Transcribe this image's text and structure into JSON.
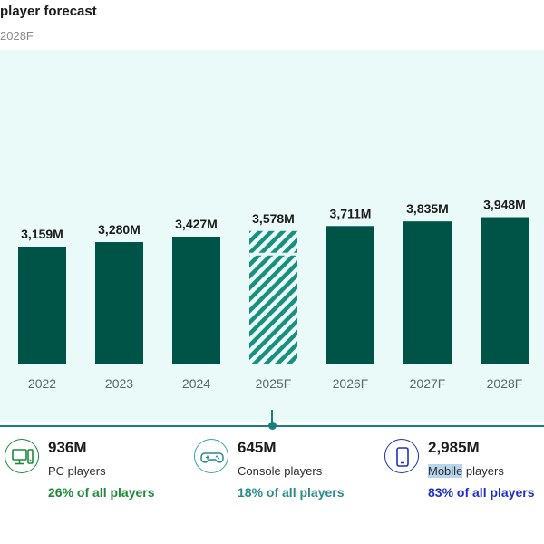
{
  "header": {
    "title": "player forecast",
    "subtitle": "2028F"
  },
  "chart_data": {
    "type": "bar",
    "categories": [
      "2022",
      "2023",
      "2024",
      "2025F",
      "2026F",
      "2027F",
      "2028F"
    ],
    "values": [
      3159,
      3280,
      3427,
      3578,
      3711,
      3835,
      3948
    ],
    "labels": [
      "3,159M",
      "3,280M",
      "3,427M",
      "3,578M",
      "3,711M",
      "3,835M",
      "3,948M"
    ],
    "forecast_highlight": "2025F",
    "unit": "M players",
    "bar_color": "#005447"
  },
  "stats": {
    "pc": {
      "icon": "pc-icon",
      "value": "936M",
      "label": "PC players",
      "share": "26% of all players",
      "share_color": "#1e8a3a"
    },
    "console": {
      "icon": "gamepad-icon",
      "value": "645M",
      "label": "Console players",
      "share": "18% of all players",
      "share_color": "#2a8a8a"
    },
    "mobile": {
      "icon": "mobile-icon",
      "value": "2,985M",
      "label_highlight": "Mobile",
      "label_rest": " players",
      "share": "83% of all players",
      "share_color": "#1f2fc4"
    }
  }
}
